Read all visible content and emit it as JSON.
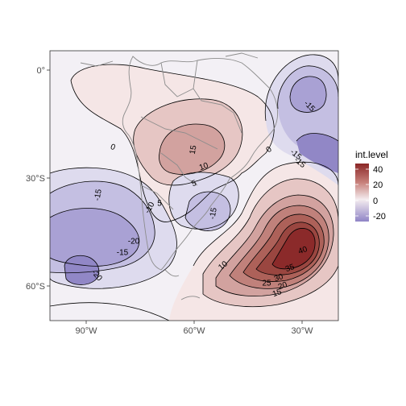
{
  "map": {
    "x_axis": {
      "ticks": [
        "90°W",
        "60°W",
        "30°W"
      ]
    },
    "y_axis": {
      "ticks": [
        "0°",
        "30°S",
        "60°S"
      ]
    },
    "legend": {
      "title": "int.level",
      "labels": [
        "40",
        "20",
        "0",
        "-20"
      ],
      "colors": [
        "#8b2626",
        "#c8827c",
        "#f4ecef",
        "#8f84c6"
      ]
    },
    "contour_labels": [
      "-15",
      "0",
      "15",
      "10",
      "5",
      "-15",
      "-15",
      "-15",
      "-20",
      "-15",
      "-20",
      "-10",
      "5",
      "10",
      "40",
      "35",
      "30",
      "25",
      "20",
      "15",
      "0",
      "-15"
    ],
    "colors": {
      "neutral": "#f3f0f5",
      "warm_1": "#f5e6e6",
      "warm_2": "#e6c6c4",
      "warm_3": "#d2a29f",
      "warm_4": "#c0817b",
      "warm_5": "#ad6159",
      "warm_6": "#9a4640",
      "warm_7": "#8b2a2a",
      "cool_1": "#dedbee",
      "cool_2": "#c4bfe2",
      "cool_3": "#a9a1d4",
      "cool_4": "#9187c6"
    }
  }
}
